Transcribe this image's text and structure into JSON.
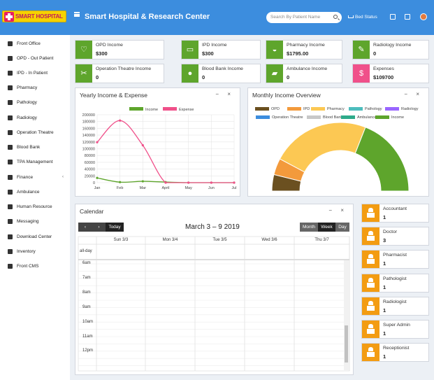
{
  "header": {
    "logo_text": "SMART HOSPITAL",
    "title": "Smart Hospital & Research Center",
    "search_placeholder": "Search By Patient Name",
    "bed_status": "Bed Status"
  },
  "sidebar": {
    "items": [
      {
        "label": "Front Office",
        "icon": "front-office-icon"
      },
      {
        "label": "OPD - Out Patient",
        "icon": "stethoscope-icon"
      },
      {
        "label": "IPD - In Patient",
        "icon": "bed-icon"
      },
      {
        "label": "Pharmacy",
        "icon": "mortar-icon"
      },
      {
        "label": "Pathology",
        "icon": "flask-icon"
      },
      {
        "label": "Radiology",
        "icon": "microscope-icon"
      },
      {
        "label": "Operation Theatre",
        "icon": "scissors-icon"
      },
      {
        "label": "Blood Bank",
        "icon": "drop-icon"
      },
      {
        "label": "TPA Management",
        "icon": "umbrella-icon"
      },
      {
        "label": "Finance",
        "icon": "money-icon",
        "has_arrow": true
      },
      {
        "label": "Ambulance",
        "icon": "ambulance-icon"
      },
      {
        "label": "Human Resource",
        "icon": "sitemap-icon"
      },
      {
        "label": "Messaging",
        "icon": "bullhorn-icon"
      },
      {
        "label": "Download Center",
        "icon": "download-icon"
      },
      {
        "label": "Inventory",
        "icon": "inventory-icon"
      },
      {
        "label": "Front CMS",
        "icon": "cms-icon"
      }
    ]
  },
  "income_boxes": [
    {
      "label": "OPD Income",
      "value": "$300",
      "color": "#5ea52c",
      "icon": "stethoscope-icon"
    },
    {
      "label": "IPD Income",
      "value": "$300",
      "color": "#5ea52c",
      "icon": "bed-icon"
    },
    {
      "label": "Pharmacy Income",
      "value": "$1795.00",
      "color": "#5ea52c",
      "icon": "mortar-icon"
    },
    {
      "label": "Radiology Income",
      "value": "0",
      "color": "#5ea52c",
      "icon": "microscope-icon"
    },
    {
      "label": "Operation Theatre Income",
      "value": "0",
      "color": "#5ea52c",
      "icon": "scissors-icon"
    },
    {
      "label": "Blood Bank Income",
      "value": "0",
      "color": "#5ea52c",
      "icon": "drop-icon"
    },
    {
      "label": "Ambulance Income",
      "value": "0",
      "color": "#5ea52c",
      "icon": "ambulance-icon"
    },
    {
      "label": "Expenses",
      "value": "$109700",
      "color": "#f0508a",
      "icon": "money-icon"
    }
  ],
  "yearly_chart": {
    "title": "Yearly Income & Expense",
    "chart_data": {
      "type": "line",
      "categories": [
        "Jan",
        "Feb",
        "Mar",
        "April",
        "May",
        "Jun",
        "Jul"
      ],
      "ylim": [
        0,
        200000
      ],
      "yticks": [
        "200000",
        "180000",
        "160000",
        "140000",
        "120000",
        "100000",
        "80000",
        "60000",
        "40000",
        "20000",
        "0"
      ],
      "series": [
        {
          "name": "Income",
          "color": "#5ea52c",
          "values": [
            14000,
            1500,
            4000,
            1700,
            0,
            0,
            0
          ]
        },
        {
          "name": "Expense",
          "color": "#f0508a",
          "values": [
            119000,
            183000,
            110000,
            0,
            0,
            0,
            0
          ]
        }
      ]
    }
  },
  "monthly_chart": {
    "title": "Monthly Income Overview",
    "chart_data": {
      "type": "pie",
      "legend": [
        {
          "name": "OPD",
          "color": "#6b5020"
        },
        {
          "name": "IPD",
          "color": "#f39a3c"
        },
        {
          "name": "Pharmacy",
          "color": "#fcc853"
        },
        {
          "name": "Pathology",
          "color": "#4dbdbd"
        },
        {
          "name": "Radiology",
          "color": "#9966ff"
        },
        {
          "name": "Operation Theatre",
          "color": "#3c8dde"
        },
        {
          "name": "Blood Bank",
          "color": "#c8c8c8"
        },
        {
          "name": "Ambulance",
          "color": "#2eaa8a"
        },
        {
          "name": "Income",
          "color": "#5ea52c"
        }
      ],
      "slices": [
        {
          "name": "OPD",
          "value": 300,
          "color": "#6b5020"
        },
        {
          "name": "IPD",
          "value": 300,
          "color": "#f39a3c"
        },
        {
          "name": "Pharmacy",
          "value": 1795,
          "color": "#fcc853"
        },
        {
          "name": "Income",
          "value": 1470,
          "color": "#5ea52c"
        }
      ]
    }
  },
  "calendar": {
    "title": "Calendar",
    "range": "March 3 – 9 2019",
    "today": "Today",
    "views": [
      "Month",
      "Week",
      "Day"
    ],
    "days": [
      "Sun 3/3",
      "Mon 3/4",
      "Tue 3/5",
      "Wed 3/6",
      "Thu 3/7"
    ],
    "allday": "all-day",
    "times": [
      "6am",
      "7am",
      "8am",
      "9am",
      "10am",
      "11am",
      "12pm"
    ]
  },
  "staff": [
    {
      "role": "Accountant",
      "count": "1"
    },
    {
      "role": "Doctor",
      "count": "3"
    },
    {
      "role": "Pharmacist",
      "count": "1"
    },
    {
      "role": "Pathologist",
      "count": "1"
    },
    {
      "role": "Radiologist",
      "count": "1"
    },
    {
      "role": "Super Admin",
      "count": "1"
    },
    {
      "role": "Receptionist",
      "count": "1"
    }
  ],
  "colors": {
    "header": "#3c8dde",
    "accent_green": "#5ea52c",
    "staff_orange": "#f39c12"
  }
}
